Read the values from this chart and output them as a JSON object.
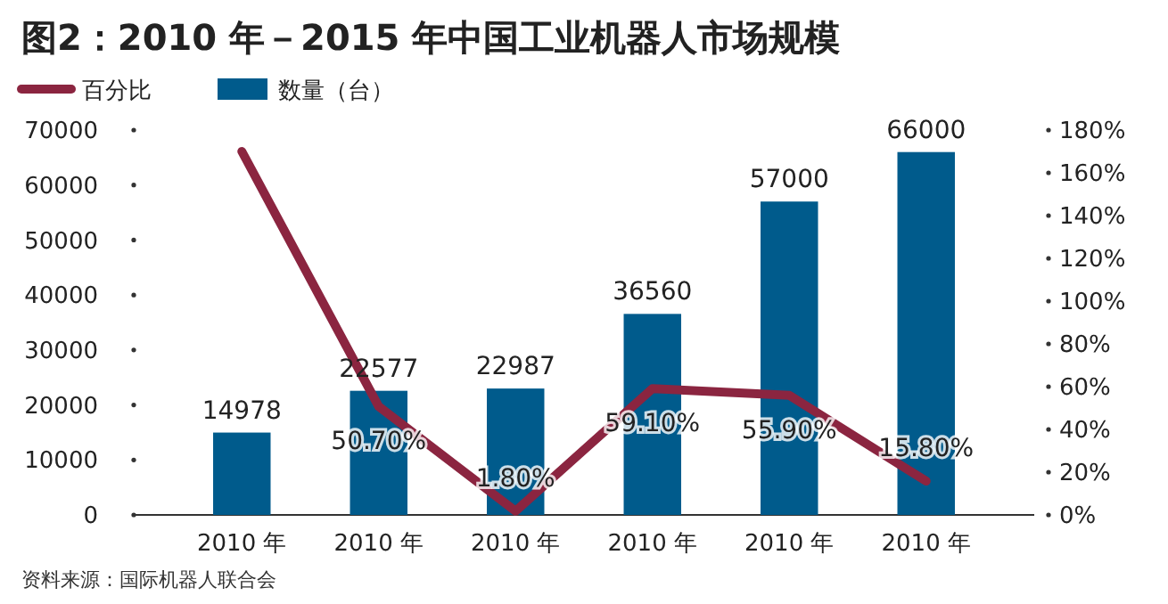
{
  "chart_data": {
    "type": "bar",
    "title": "图2：2010 年－2015 年中国工业机器人市场规模",
    "categories": [
      "2010 年",
      "2010 年",
      "2010 年",
      "2010 年",
      "2010 年",
      "2010 年"
    ],
    "series": [
      {
        "name": "数量（台）",
        "color": "#005b8c",
        "values": [
          14978,
          22577,
          22987,
          36560,
          57000,
          66000
        ],
        "value_labels": [
          "14978",
          "22577",
          "22987",
          "36560",
          "57000",
          "66000"
        ]
      },
      {
        "name": "百分比",
        "type": "line",
        "axis": "y2",
        "color": "#8b2540",
        "values": [
          170,
          50.7,
          1.8,
          59.1,
          55.9,
          15.8
        ],
        "value_labels": [
          null,
          "50.70%",
          "1.80%",
          "59.10%",
          "55.90%",
          "15.80%"
        ]
      }
    ],
    "ylim": [
      0,
      70000
    ],
    "yticks": [
      0,
      10000,
      20000,
      30000,
      40000,
      50000,
      60000,
      70000
    ],
    "y2lim": [
      0,
      180
    ],
    "y2ticks": [
      {
        "value": 0,
        "label": "0%"
      },
      {
        "value": 20,
        "label": "20%"
      },
      {
        "value": 40,
        "label": "40%"
      },
      {
        "value": 60,
        "label": "60%"
      },
      {
        "value": 80,
        "label": "80%"
      },
      {
        "value": 100,
        "label": "100%"
      },
      {
        "value": 120,
        "label": "120%"
      },
      {
        "value": 140,
        "label": "140%"
      },
      {
        "value": 160,
        "label": "160%"
      },
      {
        "value": 180,
        "label": "180%"
      }
    ],
    "legend": "top left",
    "grid": false,
    "marker": "none",
    "line_style": "solid",
    "annotations": [
      "资料来源：国际机器人联合会"
    ]
  }
}
